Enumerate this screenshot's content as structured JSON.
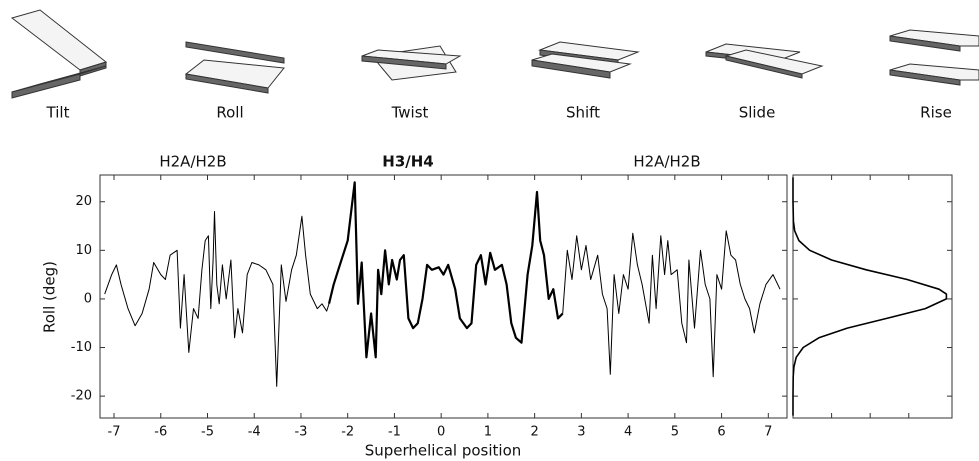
{
  "step_parameters": [
    "Tilt",
    "Roll",
    "Twist",
    "Shift",
    "Slide",
    "Rise"
  ],
  "chart_data": [
    {
      "type": "line",
      "ylabel": "Roll (deg)",
      "xlabel": "Superhelical position",
      "annotations": [
        {
          "text": "H2A/H2B",
          "bold": false
        },
        {
          "text": "H3/H4",
          "bold": true
        },
        {
          "text": "H2A/H2B",
          "bold": false
        }
      ],
      "xlim": [
        -7.3,
        7.4
      ],
      "ylim": [
        -24.5,
        25.5
      ],
      "xticks": [
        -7,
        -6,
        -5,
        -4,
        -3,
        -2,
        -1,
        0,
        1,
        2,
        3,
        4,
        5,
        6,
        7
      ],
      "yticks": [
        -20,
        -10,
        0,
        10,
        20
      ],
      "series": [
        {
          "color": "#000000",
          "linewidth": 1,
          "x": [
            -7.2,
            -7.05,
            -6.95,
            -6.85,
            -6.7,
            -6.55,
            -6.4,
            -6.25,
            -6.15,
            -6.0,
            -5.9,
            -5.8,
            -5.65,
            -5.58,
            -5.5,
            -5.4,
            -5.3,
            -5.2,
            -5.12,
            -5.05,
            -4.98,
            -4.93,
            -4.88,
            -4.85,
            -4.8,
            -4.75,
            -4.68,
            -4.6,
            -4.5,
            -4.42,
            -4.35,
            -4.25,
            -4.15,
            -4.05,
            -3.9,
            -3.75,
            -3.6,
            -3.52,
            -3.42,
            -3.32,
            -3.2,
            -3.1,
            -2.98,
            -2.9,
            -2.8,
            -2.65,
            -2.55,
            -2.45,
            -2.4
          ],
          "values": [
            1,
            5,
            7,
            3,
            -2,
            -5.5,
            -3,
            2,
            7.5,
            5,
            4,
            9,
            10,
            -6,
            5,
            -11,
            -2,
            -4,
            6,
            12,
            13,
            -2,
            8,
            18,
            3,
            -1,
            7,
            0,
            8,
            -8,
            -2,
            -7,
            5,
            7.5,
            7,
            6,
            3,
            -18,
            7,
            -0.5,
            6,
            9,
            17,
            9,
            1,
            -2,
            -1,
            -2.5,
            -1
          ]
        },
        {
          "color": "#000000",
          "linewidth": 2.2,
          "x": [
            -2.4,
            -2.3,
            -2.2,
            -2.1,
            -2.0,
            -1.95,
            -1.85,
            -1.78,
            -1.7,
            -1.6,
            -1.5,
            -1.4,
            -1.35,
            -1.28,
            -1.2,
            -1.12,
            -1.05,
            -0.95,
            -0.88,
            -0.8,
            -0.7,
            -0.6,
            -0.5,
            -0.4,
            -0.3,
            -0.2,
            -0.05,
            0.05,
            0.15,
            0.3,
            0.4,
            0.55,
            0.65,
            0.75,
            0.85,
            0.95,
            1.05,
            1.15,
            1.3,
            1.4,
            1.5,
            1.6,
            1.72,
            1.85,
            1.95,
            2.05,
            2.12,
            2.2,
            2.3,
            2.4,
            2.5,
            2.6
          ],
          "values": [
            -1,
            3,
            6,
            9,
            12,
            16,
            24,
            -1,
            7.5,
            -12,
            -3,
            -12,
            6,
            1,
            10,
            3,
            8,
            4,
            8,
            9,
            -4,
            -6,
            -5,
            0,
            7,
            6,
            6.5,
            5,
            7,
            2,
            -4,
            -6,
            -5,
            7,
            9,
            3,
            9.5,
            6,
            7,
            3,
            -5,
            -8,
            -9,
            5,
            11,
            22,
            12,
            9,
            0,
            2,
            -4,
            -3
          ]
        },
        {
          "color": "#000000",
          "linewidth": 1,
          "x": [
            2.6,
            2.7,
            2.8,
            2.9,
            3.0,
            3.1,
            3.2,
            3.35,
            3.45,
            3.55,
            3.62,
            3.7,
            3.8,
            3.9,
            4.0,
            4.1,
            4.2,
            4.3,
            4.45,
            4.52,
            4.6,
            4.7,
            4.78,
            4.85,
            4.92,
            5.05,
            5.15,
            5.25,
            5.3,
            5.42,
            5.55,
            5.65,
            5.75,
            5.82,
            5.9,
            6.0,
            6.1,
            6.2,
            6.3,
            6.4,
            6.5,
            6.6,
            6.7,
            6.82,
            6.95,
            7.1,
            7.25
          ],
          "values": [
            -3,
            10,
            4,
            13,
            6,
            11,
            4,
            9,
            1,
            -2,
            -15.5,
            5,
            -3,
            5,
            2,
            13.5,
            7,
            3,
            -5,
            9,
            -2,
            13,
            5,
            12,
            5,
            6,
            -5,
            -9,
            8,
            -6,
            10,
            3,
            0,
            -16,
            5,
            2,
            14,
            9,
            8,
            3,
            0,
            -2,
            -7,
            -1,
            3,
            5,
            2
          ]
        }
      ]
    },
    {
      "type": "line",
      "orientation": "horizontal",
      "xlim": [
        0,
        1.03
      ],
      "xticks": [
        0.25,
        0.5,
        0.75
      ],
      "series": [
        {
          "color": "#000000",
          "linewidth": 1.6,
          "x": [
            -24,
            -20,
            -16,
            -14,
            -12,
            -10,
            -8,
            -6,
            -4,
            -2,
            0,
            1,
            2,
            4,
            6,
            8,
            10,
            12,
            14,
            16,
            20,
            25
          ],
          "values": [
            0,
            0,
            0.0012,
            0.0056,
            0.021,
            0.066,
            0.168,
            0.352,
            0.607,
            0.857,
            0.994,
            0.994,
            0.946,
            0.739,
            0.474,
            0.25,
            0.108,
            0.038,
            0.011,
            0.0027,
            0.0001,
            0
          ]
        }
      ]
    }
  ]
}
